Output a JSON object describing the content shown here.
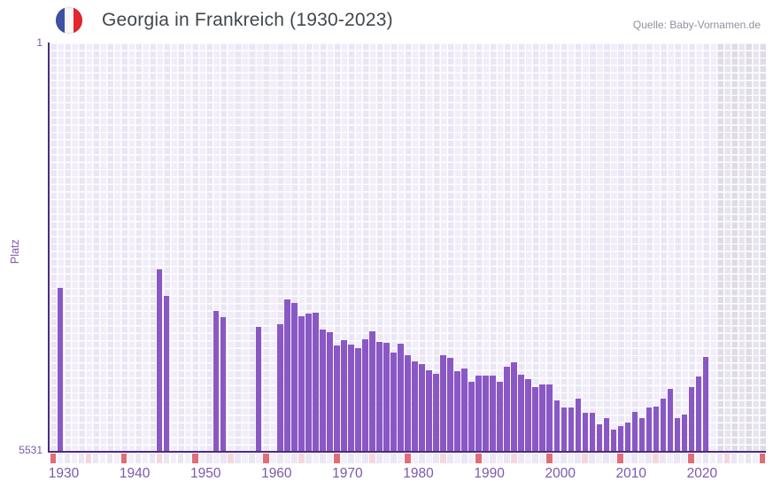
{
  "header": {
    "title": "Georgia in Frankreich (1930-2023)",
    "source": "Quelle: Baby-Vornamen.de",
    "flag_icon": "france-flag-roundel"
  },
  "chart_data": {
    "type": "bar",
    "title": "Georgia in Frankreich (1930-2023)",
    "xlabel": "",
    "ylabel": "Platz",
    "y_axis": {
      "top_label": "1",
      "bottom_label": "5531",
      "min": 1,
      "max": 5531,
      "inverted": true,
      "grid": true
    },
    "x_axis": {
      "range_start": 1928,
      "range_end": 2029,
      "tick_labels": [
        "1930",
        "1940",
        "1950",
        "1960",
        "1970",
        "1980",
        "1990",
        "2000",
        "2010",
        "2020"
      ]
    },
    "no_data_region": {
      "start_year": 2022,
      "end_year": 2029
    },
    "axis_strip": {
      "decade_mark_years_ending": "8 (every 10th cell from axis start)",
      "half_decade_mark": "every 5th cell"
    },
    "point_format": [
      "year",
      "rank"
    ],
    "points": [
      [
        1930,
        3317
      ],
      [
        1944,
        3065
      ],
      [
        1945,
        3424
      ],
      [
        1952,
        3624
      ],
      [
        1953,
        3715
      ],
      [
        1958,
        3840
      ],
      [
        1961,
        3804
      ],
      [
        1962,
        3469
      ],
      [
        1963,
        3516
      ],
      [
        1964,
        3703
      ],
      [
        1965,
        3660
      ],
      [
        1966,
        3648
      ],
      [
        1967,
        3875
      ],
      [
        1968,
        3911
      ],
      [
        1969,
        4098
      ],
      [
        1970,
        4026
      ],
      [
        1971,
        4082
      ],
      [
        1972,
        4130
      ],
      [
        1973,
        4011
      ],
      [
        1974,
        3903
      ],
      [
        1975,
        4046
      ],
      [
        1976,
        4058
      ],
      [
        1977,
        4190
      ],
      [
        1978,
        4070
      ],
      [
        1979,
        4226
      ],
      [
        1980,
        4310
      ],
      [
        1981,
        4346
      ],
      [
        1982,
        4430
      ],
      [
        1983,
        4478
      ],
      [
        1984,
        4226
      ],
      [
        1985,
        4262
      ],
      [
        1986,
        4442
      ],
      [
        1987,
        4406
      ],
      [
        1988,
        4586
      ],
      [
        1989,
        4504
      ],
      [
        1990,
        4497
      ],
      [
        1991,
        4497
      ],
      [
        1992,
        4581
      ],
      [
        1993,
        4385
      ],
      [
        1994,
        4318
      ],
      [
        1995,
        4492
      ],
      [
        1996,
        4552
      ],
      [
        1997,
        4653
      ],
      [
        1998,
        4624
      ],
      [
        1999,
        4624
      ],
      [
        2000,
        4832
      ],
      [
        2001,
        4932
      ],
      [
        2002,
        4932
      ],
      [
        2003,
        4816
      ],
      [
        2004,
        5004
      ],
      [
        2005,
        5000
      ],
      [
        2006,
        5159
      ],
      [
        2007,
        5075
      ],
      [
        2008,
        5231
      ],
      [
        2009,
        5180
      ],
      [
        2010,
        5136
      ],
      [
        2011,
        4992
      ],
      [
        2012,
        5079
      ],
      [
        2013,
        4932
      ],
      [
        2014,
        4924
      ],
      [
        2015,
        4813
      ],
      [
        2016,
        4685
      ],
      [
        2017,
        5072
      ],
      [
        2018,
        5028
      ],
      [
        2019,
        4653
      ],
      [
        2020,
        4509
      ],
      [
        2021,
        4253
      ]
    ],
    "legend": null,
    "colors": {
      "bar": "#8a58c5",
      "axis_line": "#4c2b80",
      "axis_text": "#7d57ad",
      "title_text": "#41474c",
      "source_text": "#8e929b",
      "plot_bg_even": "#ebe6f5",
      "plot_bg_odd": "#f1edf9",
      "no_data_bg": "#e2dfe9",
      "strip_decade": "#e06d78",
      "strip_half_decade": "#f5d6dc",
      "strip_cell_even": "#eae6f4",
      "strip_cell_odd": "#f2eff9",
      "flag_blue": "#3e51a2",
      "flag_red": "#e5262d"
    }
  }
}
